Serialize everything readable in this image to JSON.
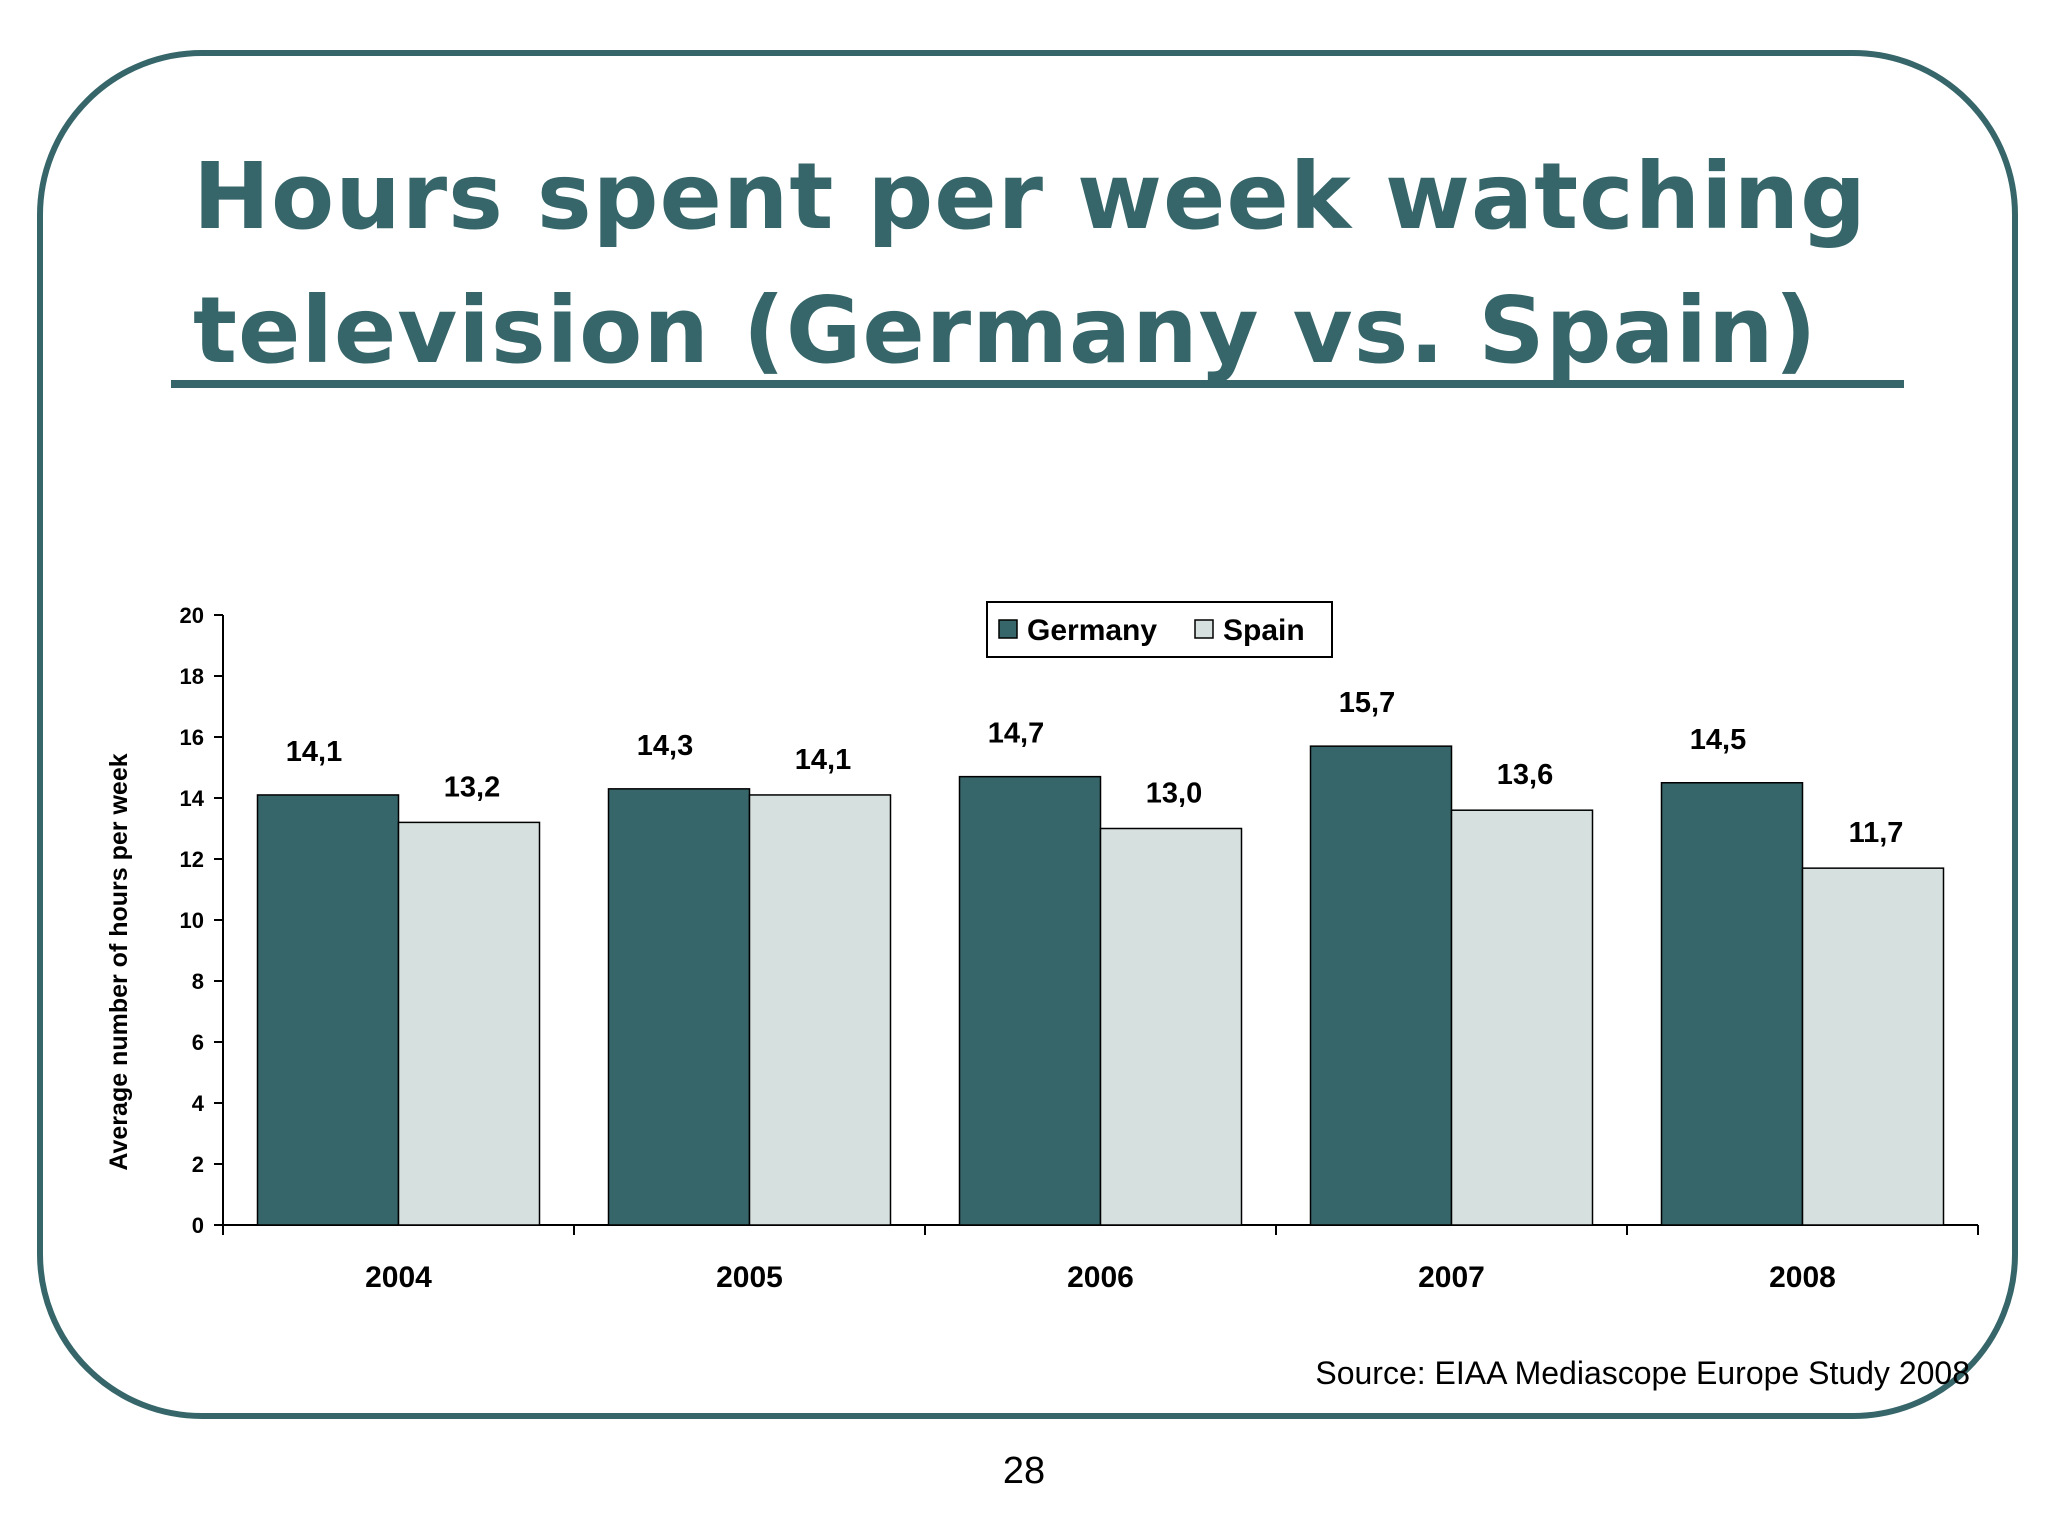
{
  "slide": {
    "title_line1": "Hours spent per week watching",
    "title_line2": "television (Germany vs. Spain)",
    "source": "Source: EIAA Mediascope Europe Study 2008",
    "page_number": "28",
    "accent_color": "#36666a"
  },
  "chart_data": {
    "type": "bar",
    "title": "",
    "xlabel": "",
    "ylabel": "Average number of hours per week",
    "ylim": [
      0,
      20
    ],
    "yticks": [
      0,
      2,
      4,
      6,
      8,
      10,
      12,
      14,
      16,
      18,
      20
    ],
    "categories": [
      "2004",
      "2005",
      "2006",
      "2007",
      "2008"
    ],
    "legend_position": "top-center",
    "grid": false,
    "series": [
      {
        "name": "Germany",
        "color": "#36666a",
        "values": [
          14.1,
          14.3,
          14.7,
          15.7,
          14.5
        ],
        "labels": [
          "14,1",
          "14,3",
          "14,7",
          "15,7",
          "14,5"
        ]
      },
      {
        "name": "Spain",
        "color": "#d6e1df",
        "values": [
          13.2,
          14.1,
          13.0,
          13.6,
          11.7
        ],
        "labels": [
          "13,2",
          "14,1",
          "13,0",
          "13,6",
          "11,7"
        ]
      }
    ]
  }
}
